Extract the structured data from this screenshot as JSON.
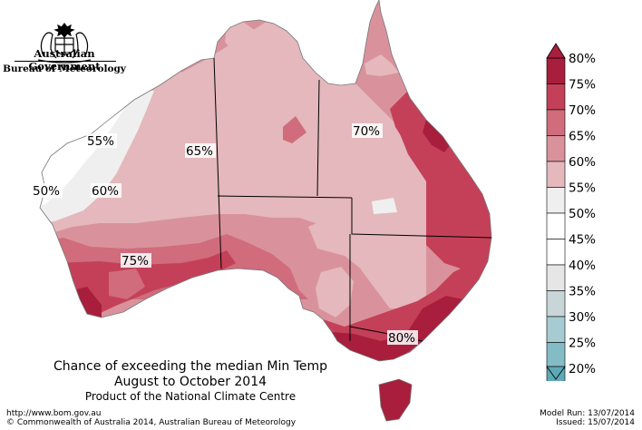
{
  "header": {
    "gov_line1": "Australian Government",
    "gov_line2": "Bureau of Meteorology",
    "crest_icon": "coat-of-arms-icon"
  },
  "map": {
    "labels": [
      "55%",
      "50%",
      "60%",
      "65%",
      "70%",
      "75%",
      "80%"
    ]
  },
  "title": {
    "line1": "Chance of exceeding the median Min Temp",
    "line2": "August to October 2014",
    "line3": "Product of the National Climate Centre"
  },
  "footer": {
    "url": "http://www.bom.gov.au",
    "copyright": "©  Commonwealth of Australia 2014, Australian Bureau of Meteorology",
    "model_run": "Model Run: 13/07/2014",
    "issued": "Issued: 15/07/2014"
  },
  "legend": {
    "labels": [
      "80%",
      "75%",
      "70%",
      "65%",
      "60%",
      "55%",
      "50%",
      "45%",
      "40%",
      "35%",
      "30%",
      "25%",
      "20%"
    ],
    "colors": [
      "#a81e3c",
      "#c44058",
      "#d06c7c",
      "#d9929c",
      "#e4b8bc",
      "#efefef",
      "#ffffff",
      "#ffffff",
      "#e6e6e6",
      "#c8d6d8",
      "#a6ccd2",
      "#84bcc6",
      "#5ea9b6"
    ]
  }
}
